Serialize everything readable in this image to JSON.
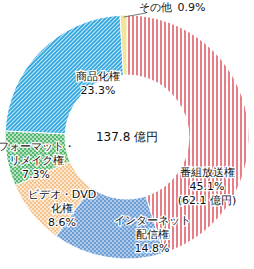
{
  "chart_data": {
    "type": "pie",
    "categories": [
      "番組放送権",
      "インターネット\n配信権",
      "ビデオ・DVD\n化権",
      "フォーマット・\nリメイク権",
      "商品化権",
      "その他"
    ],
    "values": [
      45.1,
      14.8,
      8.6,
      7.3,
      23.3,
      0.9
    ],
    "value_labels": [
      "45.1%",
      "14.8%",
      "8.6%",
      "7.3%",
      "23.3%",
      "0.9%"
    ],
    "colors": [
      "#e77f88",
      "#6d9fd6",
      "#f3b978",
      "#34a853",
      "#2ea6e0",
      "#f2e49a"
    ],
    "data_labels": true,
    "annotations": [
      {
        "text": "(62.1 億円)"
      }
    ],
    "center_text": "137.8 億円"
  }
}
